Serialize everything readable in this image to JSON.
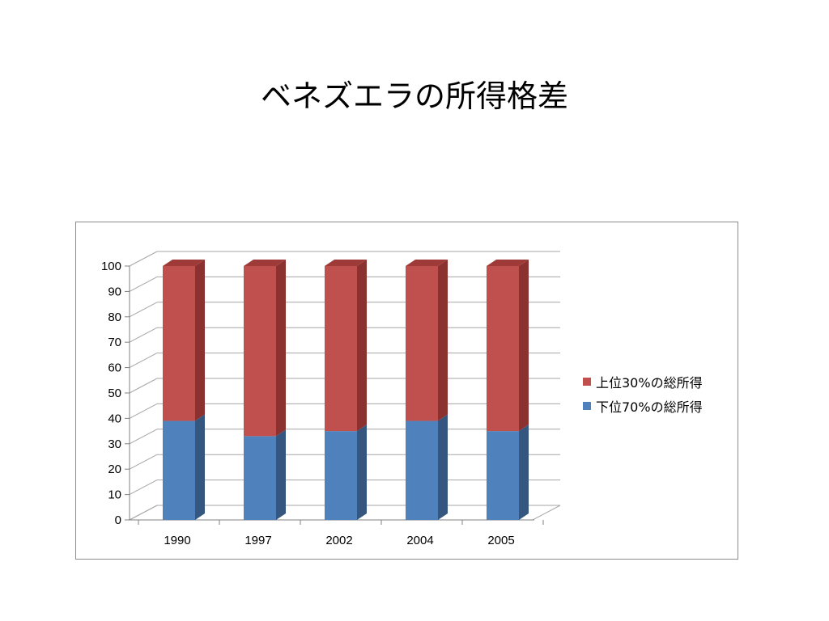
{
  "slide": {
    "title": "ベネズエラの所得格差"
  },
  "colors": {
    "series_top": "#c0504d",
    "series_top_side": "#8b3230",
    "series_top_cap": "#9e3b38",
    "series_bottom": "#4f81bd",
    "series_bottom_side": "#34567f",
    "gridline": "#a6a6a6"
  },
  "chart_data": {
    "type": "bar",
    "stacked": true,
    "three_d": true,
    "categories": [
      "1990",
      "1997",
      "2002",
      "2004",
      "2005"
    ],
    "series": [
      {
        "name": "下位70%の総所得",
        "values": [
          39,
          33,
          35,
          39,
          35
        ]
      },
      {
        "name": "上位30%の総所得",
        "values": [
          61,
          67,
          65,
          61,
          65
        ]
      }
    ],
    "ylim": [
      0,
      100
    ],
    "yticks": [
      "0",
      "10",
      "20",
      "30",
      "40",
      "50",
      "60",
      "70",
      "80",
      "90",
      "100"
    ],
    "grid": true,
    "legend_position": "right",
    "legend_order": [
      "上位30%の総所得",
      "下位70%の総所得"
    ]
  }
}
